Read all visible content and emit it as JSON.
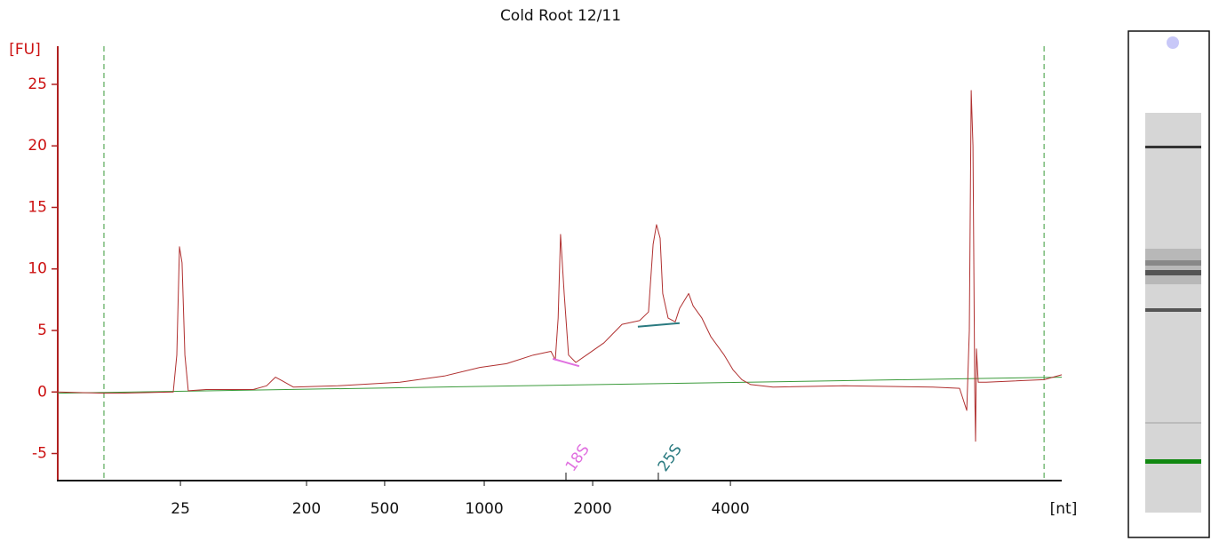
{
  "chart_data": {
    "type": "line",
    "title": "Cold Root 12/11",
    "y_label": "[FU]",
    "x_label": "[nt]",
    "color": "#b03030",
    "x": [
      19.0,
      21.3,
      22.1,
      24.75,
      24.93,
      25.06,
      25.19,
      25.33,
      25.5,
      26.39,
      28.73,
      29.4,
      29.84,
      30.19,
      30.73,
      32.94,
      36.04,
      38.25,
      40.02,
      41.35,
      42.68,
      43.56,
      43.78,
      43.92,
      44.04,
      44.22,
      44.44,
      44.8,
      45.33,
      46.21,
      47.1,
      47.98,
      48.42,
      48.65,
      48.82,
      49.0,
      49.13,
      49.4,
      49.75,
      49.97,
      50.42,
      50.64,
      51.08,
      51.52,
      52.19,
      52.63,
      53.07,
      53.51,
      54.62,
      58.16,
      62.58,
      63.91,
      64.27,
      64.4,
      64.49,
      64.58,
      64.67,
      64.71,
      64.75,
      64.84,
      65.24,
      68.12,
      69.0
    ],
    "values": [
      0,
      -0.1,
      -0.1,
      0,
      3,
      11.8,
      10.5,
      3,
      0.1,
      0.2,
      0.2,
      0.5,
      1.2,
      0.9,
      0.4,
      0.5,
      0.8,
      1.3,
      2.0,
      2.3,
      3.0,
      3.3,
      2.6,
      6,
      12.8,
      8,
      3,
      2.4,
      3.0,
      4.0,
      5.5,
      5.8,
      6.5,
      12.0,
      13.6,
      12.5,
      8,
      6.0,
      5.7,
      6.8,
      8.0,
      7.0,
      6.0,
      4.5,
      3.0,
      1.8,
      1.0,
      0.6,
      0.4,
      0.5,
      0.4,
      0.3,
      -1.5,
      5,
      24.5,
      20,
      0,
      -4,
      3.5,
      0.8,
      0.8,
      1.0,
      1.4
    ],
    "baseline": {
      "color": "#3a9a3a",
      "x": [
        19.0,
        69.0
      ],
      "values": [
        -0.1,
        1.2
      ]
    },
    "window": [
      21.3,
      68.12
    ],
    "xlim": [
      19.0,
      69.0
    ],
    "ylim": [
      -7.2,
      28.1
    ],
    "yticks": [
      -5,
      0,
      5,
      10,
      15,
      20,
      25
    ],
    "xticks": [
      {
        "value": 25.11,
        "label": "25"
      },
      {
        "value": 31.39,
        "label": "200"
      },
      {
        "value": 35.28,
        "label": "500"
      },
      {
        "value": 40.24,
        "label": "1000"
      },
      {
        "value": 45.64,
        "label": "2000"
      },
      {
        "value": 52.5,
        "label": "4000"
      }
    ],
    "markers": [
      {
        "label": "18S",
        "x": 44.31,
        "color": "#e070e0",
        "segment": {
          "x": [
            43.65,
            44.97
          ],
          "values": [
            2.7,
            2.1
          ]
        }
      },
      {
        "label": "25S",
        "x": 48.91,
        "color": "#2a7a80",
        "segment": {
          "x": [
            47.89,
            49.97
          ],
          "values": [
            5.3,
            5.6
          ]
        }
      }
    ]
  }
}
